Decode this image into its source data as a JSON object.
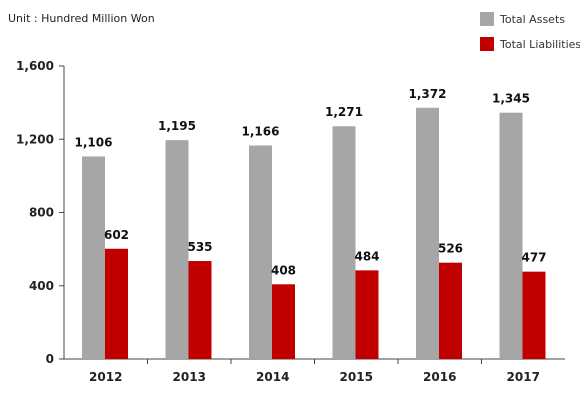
{
  "chart_data": {
    "type": "bar",
    "unit_label": "Unit : Hundred Million Won",
    "categories": [
      "2012",
      "2013",
      "2014",
      "2015",
      "2016",
      "2017"
    ],
    "series": [
      {
        "name": "Total Assets",
        "color": "#a6a6a6",
        "values": [
          1106,
          1195,
          1166,
          1271,
          1372,
          1345
        ],
        "labels": [
          "1,106",
          "1,195",
          "1,166",
          "1,271",
          "1,372",
          "1,345"
        ]
      },
      {
        "name": "Total Liabilities",
        "color": "#c00000",
        "values": [
          602,
          535,
          408,
          484,
          526,
          477
        ],
        "labels": [
          "602",
          "535",
          "408",
          "484",
          "526",
          "477"
        ]
      }
    ],
    "ylim": [
      0,
      1600
    ],
    "yticks": [
      0,
      400,
      800,
      1200,
      1600
    ],
    "ytick_labels": [
      "0",
      "400",
      "800",
      "1,200",
      "1,600"
    ],
    "legend_position": "top-right",
    "grid": false
  }
}
